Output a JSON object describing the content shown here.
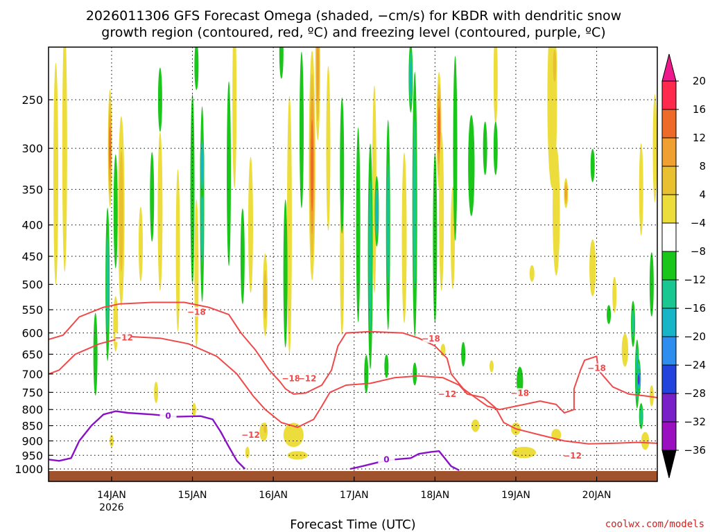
{
  "chart_data": {
    "type": "heatmap",
    "title": {
      "line1": "2026011306 GFS Forecast Omega (shaded, −cm/s) for KBDR with dendritic snow",
      "line2": "growth region (contoured, red, ºC) and freezing level (contoured, purple, ºC)"
    },
    "xlabel": "Forecast Time (UTC)",
    "x_ticks": [
      "14JAN",
      "15JAN",
      "16JAN",
      "17JAN",
      "18JAN",
      "19JAN",
      "20JAN"
    ],
    "x_year": "2026",
    "x_range_days": [
      13.22,
      20.75
    ],
    "y_ticks": [
      250,
      300,
      350,
      400,
      450,
      500,
      550,
      600,
      650,
      700,
      750,
      800,
      850,
      900,
      950,
      1000
    ],
    "y_range_hpa": [
      200,
      1010
    ],
    "colorbar": {
      "labels": [
        "20",
        "16",
        "12",
        "8",
        "4",
        "−4",
        "−8",
        "−12",
        "−16",
        "−20",
        "−24",
        "−28",
        "−32",
        "−36"
      ],
      "colors": [
        "#ff2a4c",
        "#ee6a28",
        "#f0a030",
        "#e8c030",
        "#ecdc3c",
        "#ffffff",
        "#1ac61a",
        "#18c890",
        "#18b4c8",
        "#2e8ef0",
        "#2244dd",
        "#7a20c8",
        "#9a10c0",
        "#9a9a9a"
      ],
      "top_color": "#ee1a8c",
      "bottom_color": "#000000"
    },
    "omega_features": [
      {
        "t": 13.31,
        "p": 330,
        "w": 0.06,
        "h": 260,
        "v": 6
      },
      {
        "t": 13.42,
        "p": 300,
        "w": 0.06,
        "h": 260,
        "v": 5
      },
      {
        "t": 13.98,
        "p": 300,
        "w": 0.05,
        "h": 130,
        "v": 17
      },
      {
        "t": 14.12,
        "p": 380,
        "w": 0.08,
        "h": 260,
        "v": 9
      },
      {
        "t": 14.36,
        "p": 430,
        "w": 0.05,
        "h": 120,
        "v": 6
      },
      {
        "t": 14.6,
        "p": 380,
        "w": 0.06,
        "h": 220,
        "v": 5
      },
      {
        "t": 14.82,
        "p": 440,
        "w": 0.05,
        "h": 260,
        "v": 6
      },
      {
        "t": 15.05,
        "p": 480,
        "w": 0.05,
        "h": 260,
        "v": 7
      },
      {
        "t": 15.52,
        "p": 250,
        "w": 0.05,
        "h": 160,
        "v": 5
      },
      {
        "t": 15.72,
        "p": 400,
        "w": 0.06,
        "h": 200,
        "v": 6
      },
      {
        "t": 15.9,
        "p": 520,
        "w": 0.06,
        "h": 160,
        "v": 8
      },
      {
        "t": 16.2,
        "p": 400,
        "w": 0.06,
        "h": 360,
        "v": 7
      },
      {
        "t": 16.48,
        "p": 320,
        "w": 0.08,
        "h": 260,
        "v": 18
      },
      {
        "t": 16.55,
        "p": 220,
        "w": 0.06,
        "h": 120,
        "v": 14
      },
      {
        "t": 16.68,
        "p": 300,
        "w": 0.05,
        "h": 180,
        "v": 6
      },
      {
        "t": 16.85,
        "p": 450,
        "w": 0.05,
        "h": 260,
        "v": 6
      },
      {
        "t": 17.25,
        "p": 350,
        "w": 0.05,
        "h": 260,
        "v": 6
      },
      {
        "t": 17.62,
        "p": 420,
        "w": 0.06,
        "h": 260,
        "v": 6
      },
      {
        "t": 18.05,
        "p": 280,
        "w": 0.06,
        "h": 120,
        "v": 18
      },
      {
        "t": 18.08,
        "p": 380,
        "w": 0.06,
        "h": 220,
        "v": 7
      },
      {
        "t": 18.22,
        "p": 420,
        "w": 0.05,
        "h": 160,
        "v": 5
      },
      {
        "t": 18.75,
        "p": 230,
        "w": 0.05,
        "h": 80,
        "v": 5
      },
      {
        "t": 19.45,
        "p": 250,
        "w": 0.12,
        "h": 160,
        "v": 6
      },
      {
        "t": 19.48,
        "p": 220,
        "w": 0.06,
        "h": 40,
        "v": 10
      },
      {
        "t": 19.5,
        "p": 380,
        "w": 0.09,
        "h": 180,
        "v": 5
      },
      {
        "t": 19.62,
        "p": 355,
        "w": 0.05,
        "h": 40,
        "v": 13
      },
      {
        "t": 19.95,
        "p": 470,
        "w": 0.08,
        "h": 100,
        "v": 5
      },
      {
        "t": 20.22,
        "p": 520,
        "w": 0.05,
        "h": 70,
        "v": 5
      },
      {
        "t": 20.55,
        "p": 350,
        "w": 0.05,
        "h": 120,
        "v": 5
      },
      {
        "t": 20.72,
        "p": 300,
        "w": 0.04,
        "h": 120,
        "v": 5
      },
      {
        "t": 19.2,
        "p": 480,
        "w": 0.06,
        "h": 30,
        "v": 5
      },
      {
        "t": 18.1,
        "p": 640,
        "w": 0.06,
        "h": 30,
        "v": 5
      },
      {
        "t": 18.7,
        "p": 680,
        "w": 0.04,
        "h": 30,
        "v": 5
      },
      {
        "t": 15.88,
        "p": 870,
        "w": 0.1,
        "h": 60,
        "v": 6
      },
      {
        "t": 15.9,
        "p": 860,
        "w": 0.05,
        "h": 40,
        "v": 11
      },
      {
        "t": 16.25,
        "p": 880,
        "w": 0.25,
        "h": 80,
        "v": 5
      },
      {
        "t": 16.3,
        "p": 950,
        "w": 0.25,
        "h": 30,
        "v": 5
      },
      {
        "t": 15.68,
        "p": 940,
        "w": 0.05,
        "h": 40,
        "v": 5
      },
      {
        "t": 19.1,
        "p": 940,
        "w": 0.3,
        "h": 40,
        "v": 5
      },
      {
        "t": 19.0,
        "p": 860,
        "w": 0.12,
        "h": 40,
        "v": 5
      },
      {
        "t": 18.5,
        "p": 850,
        "w": 0.1,
        "h": 40,
        "v": 5
      },
      {
        "t": 19.5,
        "p": 880,
        "w": 0.12,
        "h": 40,
        "v": 5
      },
      {
        "t": 20.6,
        "p": 900,
        "w": 0.1,
        "h": 60,
        "v": 5
      },
      {
        "t": 14.0,
        "p": 900,
        "w": 0.05,
        "h": 40,
        "v": 5
      },
      {
        "t": 15.02,
        "p": 800,
        "w": 0.05,
        "h": 40,
        "v": 5
      },
      {
        "t": 14.55,
        "p": 750,
        "w": 0.04,
        "h": 60,
        "v": 5
      },
      {
        "t": 20.35,
        "p": 640,
        "w": 0.08,
        "h": 80,
        "v": 5
      },
      {
        "t": 14.05,
        "p": 580,
        "w": 0.06,
        "h": 120,
        "v": 6
      },
      {
        "t": 20.68,
        "p": 760,
        "w": 0.05,
        "h": 60,
        "v": 5
      },
      {
        "t": 13.95,
        "p": 500,
        "w": 0.04,
        "h": 280,
        "v": -9
      },
      {
        "t": 14.05,
        "p": 380,
        "w": 0.04,
        "h": 160,
        "v": -6
      },
      {
        "t": 13.8,
        "p": 650,
        "w": 0.05,
        "h": 200,
        "v": -6
      },
      {
        "t": 14.5,
        "p": 360,
        "w": 0.04,
        "h": 120,
        "v": -5
      },
      {
        "t": 15.0,
        "p": 350,
        "w": 0.05,
        "h": 240,
        "v": -7
      },
      {
        "t": 15.12,
        "p": 370,
        "w": 0.05,
        "h": 260,
        "v": -9
      },
      {
        "t": 15.12,
        "p": 320,
        "w": 0.02,
        "h": 80,
        "v": -14
      },
      {
        "t": 15.45,
        "p": 330,
        "w": 0.05,
        "h": 220,
        "v": -7
      },
      {
        "t": 15.62,
        "p": 450,
        "w": 0.04,
        "h": 160,
        "v": -5
      },
      {
        "t": 16.15,
        "p": 480,
        "w": 0.05,
        "h": 260,
        "v": -6
      },
      {
        "t": 16.35,
        "p": 280,
        "w": 0.04,
        "h": 160,
        "v": -6
      },
      {
        "t": 16.85,
        "p": 320,
        "w": 0.04,
        "h": 160,
        "v": -6
      },
      {
        "t": 17.05,
        "p": 400,
        "w": 0.05,
        "h": 280,
        "v": -7
      },
      {
        "t": 17.2,
        "p": 450,
        "w": 0.06,
        "h": 360,
        "v": -10
      },
      {
        "t": 17.28,
        "p": 380,
        "w": 0.03,
        "h": 100,
        "v": -12
      },
      {
        "t": 17.42,
        "p": 400,
        "w": 0.05,
        "h": 300,
        "v": -8
      },
      {
        "t": 17.75,
        "p": 370,
        "w": 0.06,
        "h": 340,
        "v": -9
      },
      {
        "t": 17.7,
        "p": 230,
        "w": 0.03,
        "h": 60,
        "v": -13
      },
      {
        "t": 18.0,
        "p": 420,
        "w": 0.04,
        "h": 260,
        "v": -6
      },
      {
        "t": 18.25,
        "p": 300,
        "w": 0.05,
        "h": 200,
        "v": -6
      },
      {
        "t": 18.45,
        "p": 320,
        "w": 0.08,
        "h": 120,
        "v": -7
      },
      {
        "t": 18.62,
        "p": 300,
        "w": 0.04,
        "h": 60,
        "v": -6
      },
      {
        "t": 18.75,
        "p": 300,
        "w": 0.03,
        "h": 60,
        "v": -6
      },
      {
        "t": 18.35,
        "p": 650,
        "w": 0.04,
        "h": 60,
        "v": -5
      },
      {
        "t": 19.05,
        "p": 720,
        "w": 0.08,
        "h": 80,
        "v": -6
      },
      {
        "t": 17.15,
        "p": 700,
        "w": 0.05,
        "h": 100,
        "v": -7
      },
      {
        "t": 17.4,
        "p": 680,
        "w": 0.04,
        "h": 60,
        "v": -6
      },
      {
        "t": 17.75,
        "p": 700,
        "w": 0.04,
        "h": 60,
        "v": -6
      },
      {
        "t": 19.95,
        "p": 320,
        "w": 0.03,
        "h": 40,
        "v": -5
      },
      {
        "t": 20.15,
        "p": 560,
        "w": 0.03,
        "h": 40,
        "v": -5
      },
      {
        "t": 20.45,
        "p": 580,
        "w": 0.05,
        "h": 100,
        "v": -8
      },
      {
        "t": 20.5,
        "p": 700,
        "w": 0.05,
        "h": 180,
        "v": -14
      },
      {
        "t": 20.52,
        "p": 710,
        "w": 0.03,
        "h": 100,
        "v": -20
      },
      {
        "t": 20.52,
        "p": 715,
        "w": 0.015,
        "h": 60,
        "v": -27
      },
      {
        "t": 20.68,
        "p": 500,
        "w": 0.03,
        "h": 120,
        "v": -6
      },
      {
        "t": 20.55,
        "p": 820,
        "w": 0.04,
        "h": 80,
        "v": -11
      },
      {
        "t": 14.6,
        "p": 250,
        "w": 0.03,
        "h": 60,
        "v": -5
      },
      {
        "t": 15.05,
        "p": 220,
        "w": 0.03,
        "h": 40,
        "v": -5
      },
      {
        "t": 16.1,
        "p": 210,
        "w": 0.03,
        "h": 40,
        "v": -5
      }
    ],
    "dgz_contours": [
      {
        "label": "−18",
        "label_at": [
          15.05,
          555
        ],
        "points": [
          [
            13.22,
            615
          ],
          [
            13.4,
            605
          ],
          [
            13.6,
            565
          ],
          [
            13.9,
            545
          ],
          [
            14.1,
            538
          ],
          [
            14.5,
            535
          ],
          [
            14.9,
            535
          ],
          [
            15.2,
            545
          ],
          [
            15.45,
            560
          ],
          [
            15.6,
            600
          ],
          [
            15.78,
            640
          ],
          [
            15.95,
            690
          ],
          [
            16.08,
            720
          ],
          [
            16.15,
            740
          ],
          [
            16.25,
            755
          ],
          [
            16.4,
            752
          ],
          [
            16.6,
            730
          ],
          [
            16.72,
            690
          ],
          [
            16.8,
            630
          ],
          [
            16.9,
            600
          ],
          [
            17.2,
            597
          ],
          [
            17.6,
            600
          ],
          [
            17.8,
            612
          ],
          [
            18.0,
            630
          ],
          [
            18.15,
            660
          ],
          [
            18.2,
            700
          ],
          [
            18.35,
            740
          ],
          [
            18.5,
            765
          ],
          [
            18.65,
            790
          ],
          [
            18.8,
            800
          ],
          [
            19.0,
            790
          ],
          [
            19.3,
            775
          ],
          [
            19.5,
            785
          ],
          [
            19.6,
            810
          ],
          [
            19.72,
            800
          ],
          [
            19.72,
            740
          ],
          [
            19.8,
            690
          ],
          [
            19.85,
            665
          ],
          [
            20.0,
            655
          ],
          [
            20.02,
            690
          ],
          [
            20.2,
            735
          ],
          [
            20.4,
            755
          ],
          [
            20.6,
            760
          ],
          [
            20.75,
            765
          ]
        ]
      },
      {
        "label": "−12",
        "label_at": [
          14.15,
          611
        ],
        "points": [
          [
            13.22,
            700
          ],
          [
            13.35,
            690
          ],
          [
            13.55,
            650
          ],
          [
            13.85,
            625
          ],
          [
            14.2,
            608
          ],
          [
            14.6,
            612
          ],
          [
            14.95,
            625
          ],
          [
            15.3,
            655
          ],
          [
            15.55,
            700
          ],
          [
            15.75,
            760
          ],
          [
            15.9,
            800
          ],
          [
            16.1,
            840
          ],
          [
            16.3,
            855
          ],
          [
            16.5,
            830
          ],
          [
            16.6,
            790
          ],
          [
            16.7,
            750
          ],
          [
            16.9,
            730
          ],
          [
            17.2,
            725
          ],
          [
            17.5,
            710
          ],
          [
            17.8,
            705
          ],
          [
            18.1,
            710
          ],
          [
            18.3,
            730
          ],
          [
            18.4,
            755
          ],
          [
            18.6,
            765
          ],
          [
            18.75,
            795
          ],
          [
            18.85,
            840
          ],
          [
            19.0,
            860
          ],
          [
            19.3,
            880
          ],
          [
            19.6,
            900
          ],
          [
            19.9,
            910
          ],
          [
            20.2,
            908
          ],
          [
            20.5,
            905
          ],
          [
            20.75,
            908
          ]
        ]
      }
    ],
    "dgz_small_labels": [
      {
        "label": "−18",
        "at": [
          16.22,
          712
        ]
      },
      {
        "label": "−12",
        "at": [
          16.42,
          712
        ]
      },
      {
        "label": "−18",
        "at": [
          17.95,
          613
        ]
      },
      {
        "label": "−12",
        "at": [
          18.15,
          755
        ]
      },
      {
        "label": "−18",
        "at": [
          19.05,
          752
        ]
      },
      {
        "label": "−18",
        "at": [
          20.0,
          685
        ]
      },
      {
        "label": "−12",
        "at": [
          19.7,
          952
        ]
      },
      {
        "label": "−12",
        "at": [
          15.72,
          880
        ]
      }
    ],
    "freezing_contours": [
      {
        "label": "0",
        "label_at": [
          14.7,
          820
        ],
        "points": [
          [
            13.22,
            965
          ],
          [
            13.35,
            970
          ],
          [
            13.5,
            960
          ],
          [
            13.6,
            900
          ],
          [
            13.75,
            850
          ],
          [
            13.9,
            815
          ],
          [
            14.05,
            805
          ],
          [
            14.2,
            810
          ],
          [
            14.5,
            815
          ],
          [
            14.8,
            822
          ],
          [
            15.1,
            820
          ],
          [
            15.25,
            830
          ],
          [
            15.35,
            870
          ],
          [
            15.45,
            920
          ],
          [
            15.55,
            970
          ],
          [
            15.65,
            1000
          ]
        ]
      },
      {
        "label": "0",
        "label_at": [
          17.4,
          965
        ],
        "points": [
          [
            16.95,
            1000
          ],
          [
            17.1,
            990
          ],
          [
            17.3,
            975
          ],
          [
            17.5,
            965
          ],
          [
            17.7,
            960
          ],
          [
            17.8,
            945
          ],
          [
            17.95,
            938
          ],
          [
            18.05,
            935
          ],
          [
            18.12,
            960
          ],
          [
            18.2,
            990
          ],
          [
            18.3,
            1005
          ]
        ]
      }
    ],
    "credit": "coolwx.com/models"
  }
}
